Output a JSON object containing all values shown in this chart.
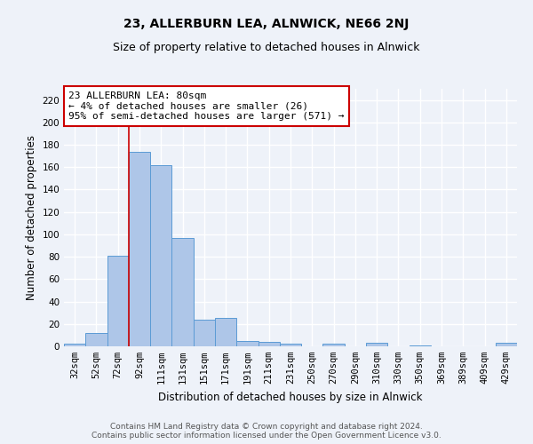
{
  "title": "23, ALLERBURN LEA, ALNWICK, NE66 2NJ",
  "subtitle": "Size of property relative to detached houses in Alnwick",
  "xlabel": "Distribution of detached houses by size in Alnwick",
  "ylabel": "Number of detached properties",
  "categories": [
    "32sqm",
    "52sqm",
    "72sqm",
    "92sqm",
    "111sqm",
    "131sqm",
    "151sqm",
    "171sqm",
    "191sqm",
    "211sqm",
    "231sqm",
    "250sqm",
    "270sqm",
    "290sqm",
    "310sqm",
    "330sqm",
    "350sqm",
    "369sqm",
    "389sqm",
    "409sqm",
    "429sqm"
  ],
  "values": [
    2,
    12,
    81,
    174,
    162,
    97,
    24,
    25,
    5,
    4,
    2,
    0,
    2,
    0,
    3,
    0,
    1,
    0,
    0,
    0,
    3
  ],
  "bar_color": "#aec6e8",
  "bar_edge_color": "#5b9bd5",
  "bar_width": 1.0,
  "ylim": [
    0,
    230
  ],
  "yticks": [
    0,
    20,
    40,
    60,
    80,
    100,
    120,
    140,
    160,
    180,
    200,
    220
  ],
  "red_line_x": 2.5,
  "annotation_box_text": "23 ALLERBURN LEA: 80sqm\n← 4% of detached houses are smaller (26)\n95% of semi-detached houses are larger (571) →",
  "box_color": "#ffffff",
  "box_edge_color": "#cc0000",
  "footer_line1": "Contains HM Land Registry data © Crown copyright and database right 2024.",
  "footer_line2": "Contains public sector information licensed under the Open Government Licence v3.0.",
  "background_color": "#eef2f9",
  "grid_color": "#ffffff",
  "title_fontsize": 10,
  "subtitle_fontsize": 9,
  "axis_label_fontsize": 8.5,
  "tick_fontsize": 7.5,
  "annotation_fontsize": 8,
  "footer_fontsize": 6.5
}
